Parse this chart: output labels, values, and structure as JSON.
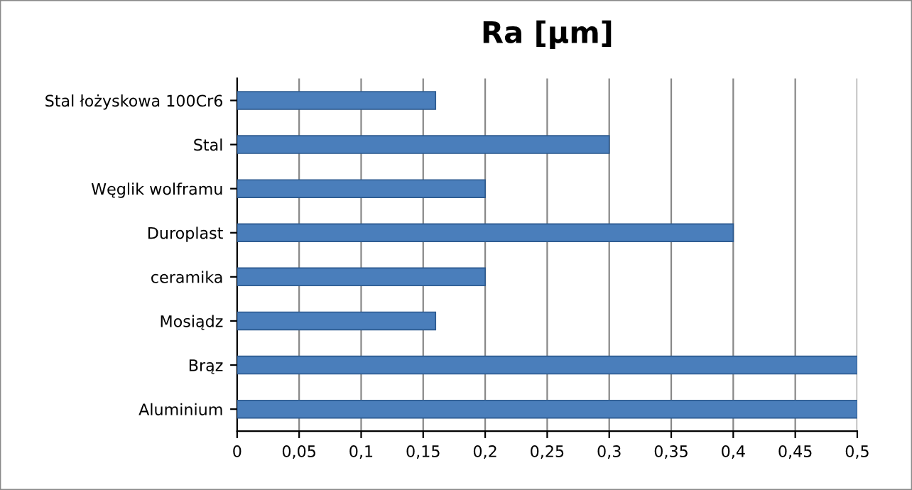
{
  "chart_data": {
    "type": "bar",
    "orientation": "horizontal",
    "title": "Ra [µm]",
    "categories": [
      "Stal łożyskowa 100Cr6",
      "Stal",
      "Węglik wolframu",
      "Duroplast",
      "ceramika",
      "Mosiądz",
      "Brąz",
      "Aluminium"
    ],
    "values": [
      0.16,
      0.3,
      0.2,
      0.4,
      0.2,
      0.16,
      0.5,
      0.5
    ],
    "color": "#4a7ebb",
    "xlim": [
      0,
      0.5
    ],
    "xticks": [
      0,
      {
        "value": 0.05,
        "label": "0,05"
      },
      {
        "value": 0.1,
        "label": "0,1"
      },
      {
        "value": 0.15,
        "label": "0,15"
      },
      {
        "value": 0.2,
        "label": "0,2"
      },
      {
        "value": 0.25,
        "label": "0,25"
      },
      {
        "value": 0.3,
        "label": "0,3"
      },
      {
        "value": 0.35,
        "label": "0,35"
      },
      {
        "value": 0.4,
        "label": "0,4"
      },
      {
        "value": 0.45,
        "label": "0,45"
      },
      {
        "value": 0.5,
        "label": "0,5"
      }
    ],
    "grid": "x"
  }
}
